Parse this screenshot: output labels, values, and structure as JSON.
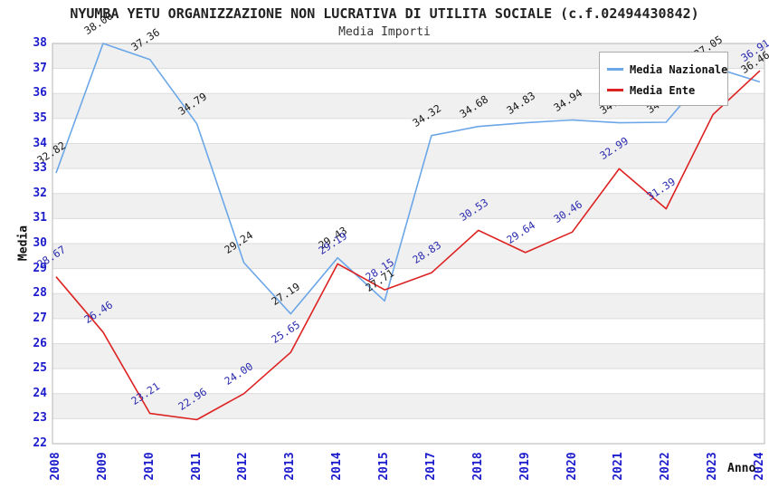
{
  "chart": {
    "title": "NYUMBA YETU ORGANIZZAZIONE NON LUCRATIVA DI UTILITA SOCIALE (c.f.02494430842)",
    "subtitle": "Media Importi",
    "ylabel": "Media",
    "xlabel": "Anno"
  },
  "chart_data": {
    "type": "line",
    "title": "NYUMBA YETU ORGANIZZAZIONE NON LUCRATIVA DI UTILITA SOCIALE (c.f.02494430842)",
    "subtitle": "Media Importi",
    "xlabel": "Anno",
    "ylabel": "Media",
    "categories": [
      "2008",
      "2009",
      "2010",
      "2011",
      "2012",
      "2013",
      "2014",
      "2015",
      "2017",
      "2018",
      "2019",
      "2020",
      "2021",
      "2022",
      "2023",
      "2024"
    ],
    "ylim": [
      22,
      38
    ],
    "y_tick_step": 1,
    "grid": true,
    "band_fill": "#f0f0f0",
    "grid_color": "#dcdcdc",
    "border_color": "#b5b5b5",
    "tick_color": "#1c1ccc",
    "legend_position": "top-right",
    "series": [
      {
        "name": "Media Nazionale",
        "color": "#6ba7e8",
        "label_color": "#1a1a1a",
        "values": [
          32.82,
          38.0,
          37.36,
          34.79,
          29.24,
          27.19,
          29.43,
          27.71,
          34.32,
          34.68,
          34.83,
          34.94,
          34.83,
          34.85,
          37.05,
          36.46
        ]
      },
      {
        "name": "Media Ente",
        "color": "#dd2222",
        "label_color": "#2b2bb0",
        "values": [
          28.67,
          26.46,
          23.21,
          22.96,
          24.0,
          25.65,
          29.19,
          28.15,
          28.83,
          30.53,
          29.64,
          30.46,
          32.99,
          31.39,
          35.16,
          36.91
        ]
      }
    ]
  }
}
